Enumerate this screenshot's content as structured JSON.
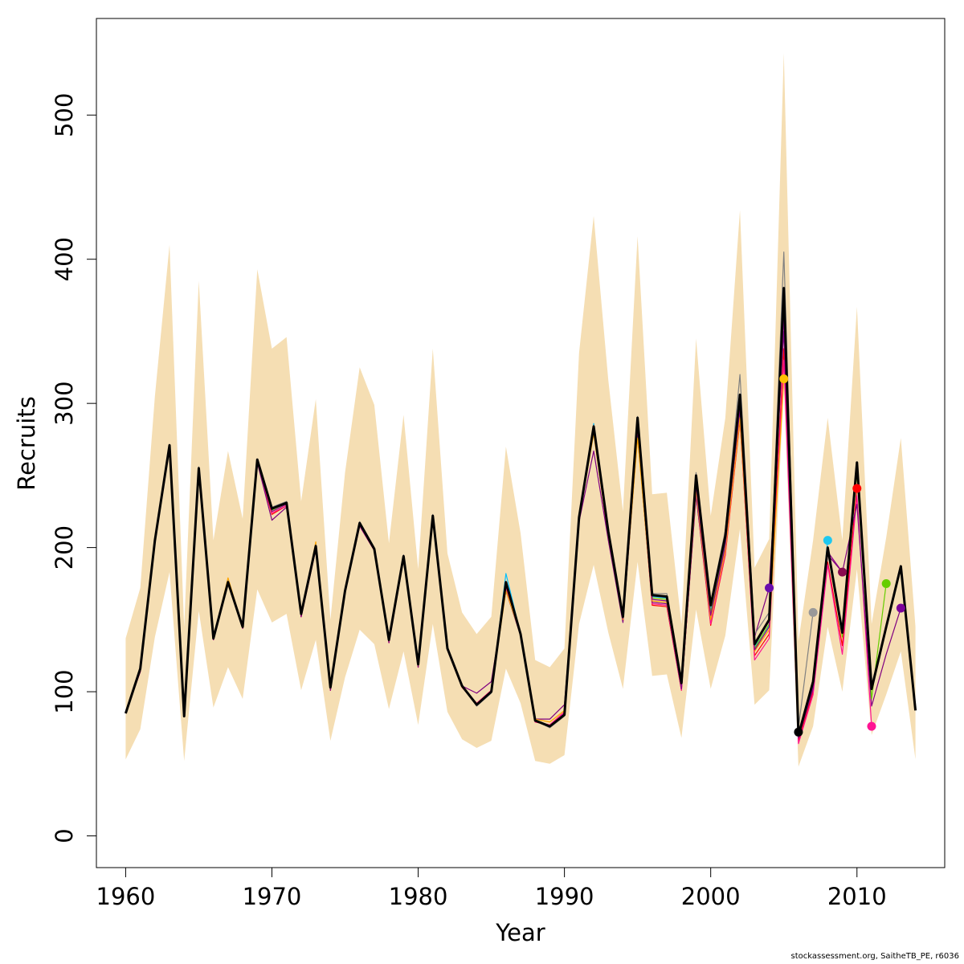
{
  "chart_data": {
    "type": "line",
    "title": "",
    "xlabel": "Year",
    "ylabel": "Recruits",
    "xlim": [
      1958,
      2016
    ],
    "ylim": [
      -22,
      567
    ],
    "xticks": [
      1960,
      1970,
      1980,
      1990,
      2000,
      2010
    ],
    "yticks": [
      0,
      100,
      200,
      300,
      400,
      500
    ],
    "band_color": "#F5DEB3",
    "band": {
      "x": [
        1960,
        1961,
        1962,
        1963,
        1964,
        1965,
        1966,
        1967,
        1968,
        1969,
        1970,
        1971,
        1972,
        1973,
        1974,
        1975,
        1976,
        1977,
        1978,
        1979,
        1980,
        1981,
        1982,
        1983,
        1984,
        1985,
        1986,
        1987,
        1988,
        1989,
        1990,
        1991,
        1992,
        1993,
        1994,
        1995,
        1996,
        1997,
        1998,
        1999,
        2000,
        2001,
        2002,
        2003,
        2004,
        2005,
        2006,
        2007,
        2008,
        2009,
        2010,
        2011,
        2012,
        2013,
        2014
      ],
      "upper": [
        137,
        172,
        305,
        410,
        145,
        385,
        205,
        267,
        220,
        393,
        338,
        346,
        232,
        303,
        150,
        252,
        325,
        299,
        203,
        292,
        185,
        338,
        196,
        155,
        140,
        152,
        270,
        210,
        122,
        117,
        130,
        335,
        430,
        316,
        225,
        416,
        237,
        238,
        147,
        345,
        222,
        290,
        434,
        186,
        206,
        543,
        135,
        205,
        290,
        205,
        367,
        147,
        207,
        276,
        145
      ],
      "lower": [
        53,
        74,
        138,
        183,
        52,
        156,
        89,
        117,
        95,
        171,
        148,
        154,
        101,
        136,
        66,
        110,
        143,
        133,
        88,
        128,
        77,
        147,
        86,
        67,
        61,
        66,
        116,
        92,
        52,
        50,
        56,
        147,
        188,
        141,
        102,
        190,
        111,
        112,
        68,
        157,
        102,
        139,
        213,
        91,
        101,
        311,
        48,
        76,
        145,
        100,
        185,
        70,
        98,
        128,
        53
      ]
    },
    "series": [
      {
        "color": "#000000",
        "width": 3.0,
        "x": [
          1960,
          1961,
          1962,
          1963,
          1964,
          1965,
          1966,
          1967,
          1968,
          1969,
          1970,
          1971,
          1972,
          1973,
          1974,
          1975,
          1976,
          1977,
          1978,
          1979,
          1980,
          1981,
          1982,
          1983,
          1984,
          1985,
          1986,
          1987,
          1988,
          1989,
          1990,
          1991,
          1992,
          1993,
          1994,
          1995,
          1996,
          1997,
          1998,
          1999,
          2000,
          2001,
          2002,
          2003,
          2004,
          2005,
          2006,
          2007,
          2008,
          2009,
          2010,
          2011,
          2012,
          2013,
          2014
        ],
        "values": [
          85,
          116,
          205,
          271,
          83,
          255,
          137,
          176,
          145,
          261,
          227,
          231,
          154,
          201,
          103,
          170,
          217,
          199,
          136,
          194,
          119,
          222,
          130,
          104,
          91,
          100,
          176,
          140,
          80,
          76,
          84,
          221,
          284,
          211,
          152,
          290,
          167,
          166,
          106,
          250,
          160,
          208,
          306,
          133,
          150,
          380,
          70,
          107,
          200,
          141,
          259,
          102,
          145,
          187,
          87
        ]
      },
      {
        "color": "#FF0000",
        "width": 1.2,
        "x": [
          1960,
          1961,
          1962,
          1963,
          1964,
          1965,
          1966,
          1967,
          1968,
          1969,
          1970,
          1971,
          1972,
          1973,
          1974,
          1975,
          1976,
          1977,
          1978,
          1979,
          1980,
          1981,
          1982,
          1983,
          1984,
          1985,
          1986,
          1987,
          1988,
          1989,
          1990,
          1991,
          1992,
          1993,
          1994,
          1995,
          1996,
          1997,
          1998,
          1999,
          2000,
          2001,
          2002,
          2003,
          2004,
          2005,
          2006,
          2007,
          2008,
          2009,
          2010
        ],
        "values": [
          85,
          114,
          203,
          269,
          83,
          253,
          136,
          175,
          144,
          259,
          223,
          229,
          152,
          199,
          101,
          169,
          215,
          198,
          134,
          192,
          117,
          221,
          129,
          103,
          92,
          101,
          172,
          139,
          79,
          77,
          86,
          220,
          280,
          207,
          149,
          280,
          160,
          159,
          101,
          237,
          146,
          195,
          288,
          125,
          140,
          338,
          66,
          100,
          190,
          132,
          241
        ]
      },
      {
        "color": "#FF1493",
        "width": 1.2,
        "x": [
          1960,
          1961,
          1962,
          1963,
          1964,
          1965,
          1966,
          1967,
          1968,
          1969,
          1970,
          1971,
          1972,
          1973,
          1974,
          1975,
          1976,
          1977,
          1978,
          1979,
          1980,
          1981,
          1982,
          1983,
          1984,
          1985,
          1986,
          1987,
          1988,
          1989,
          1990,
          1991,
          1992,
          1993,
          1994,
          1995,
          1996,
          1997,
          1998,
          1999,
          2000,
          2001,
          2002,
          2003,
          2004,
          2005,
          2006,
          2007,
          2008,
          2009,
          2010,
          2011
        ],
        "values": [
          85,
          114,
          203,
          269,
          83,
          253,
          136,
          175,
          144,
          259,
          224,
          229,
          152,
          199,
          101,
          169,
          215,
          198,
          134,
          192,
          117,
          221,
          129,
          103,
          92,
          101,
          172,
          139,
          79,
          77,
          86,
          220,
          281,
          208,
          149,
          282,
          161,
          160,
          101,
          238,
          147,
          196,
          290,
          122,
          137,
          330,
          64,
          98,
          188,
          126,
          236,
          76
        ]
      },
      {
        "color": "#00BFFF",
        "width": 1.2,
        "x": [
          1960,
          1961,
          1962,
          1963,
          1964,
          1965,
          1966,
          1967,
          1968,
          1969,
          1970,
          1971,
          1972,
          1973,
          1974,
          1975,
          1976,
          1977,
          1978,
          1979,
          1980,
          1981,
          1982,
          1983,
          1984,
          1985,
          1986,
          1987,
          1988,
          1989,
          1990,
          1991,
          1992,
          1993,
          1994,
          1995,
          1996,
          1997,
          1998,
          1999,
          2000,
          2001,
          2002,
          2003,
          2004,
          2005,
          2006,
          2007,
          2008
        ],
        "values": [
          85,
          115,
          204,
          270,
          83,
          254,
          137,
          176,
          145,
          260,
          226,
          231,
          153,
          200,
          102,
          170,
          216,
          199,
          135,
          193,
          118,
          222,
          130,
          104,
          91,
          100,
          182,
          140,
          80,
          76,
          84,
          222,
          286,
          211,
          151,
          290,
          166,
          165,
          105,
          246,
          157,
          205,
          303,
          131,
          146,
          372,
          72,
          105,
          205
        ]
      },
      {
        "color": "#800080",
        "width": 1.2,
        "x": [
          1960,
          1961,
          1962,
          1963,
          1964,
          1965,
          1966,
          1967,
          1968,
          1969,
          1970,
          1971,
          1972,
          1973,
          1974,
          1975,
          1976,
          1977,
          1978,
          1979,
          1980,
          1981,
          1982,
          1983,
          1984,
          1985,
          1986,
          1987,
          1988,
          1989,
          1990,
          1991,
          1992,
          1993,
          1994,
          1995,
          1996,
          1997,
          1998,
          1999,
          2000,
          2001,
          2002,
          2003,
          2004,
          2005,
          2006,
          2007,
          2008,
          2009,
          2010,
          2011,
          2012,
          2013
        ],
        "values": [
          85,
          114,
          203,
          269,
          83,
          253,
          136,
          175,
          144,
          259,
          219,
          228,
          152,
          199,
          101,
          169,
          215,
          198,
          134,
          192,
          117,
          221,
          129,
          104,
          99,
          107,
          170,
          139,
          81,
          81,
          91,
          218,
          267,
          205,
          148,
          278,
          162,
          161,
          102,
          236,
          150,
          200,
          295,
          138,
          172,
          350,
          68,
          102,
          195,
          183,
          230,
          90,
          126,
          158
        ]
      },
      {
        "color": "#FFA500",
        "width": 1.2,
        "x": [
          1960,
          1961,
          1962,
          1963,
          1964,
          1965,
          1966,
          1967,
          1968,
          1969,
          1970,
          1971,
          1972,
          1973,
          1974,
          1975,
          1976,
          1977,
          1978,
          1979,
          1980,
          1981,
          1982,
          1983,
          1984,
          1985,
          1986,
          1987,
          1988,
          1989,
          1990,
          1991,
          1992,
          1993,
          1994,
          1995,
          1996,
          1997,
          1998,
          1999,
          2000,
          2001,
          2002,
          2003,
          2004,
          2005
        ],
        "values": [
          85,
          115,
          204,
          270,
          83,
          254,
          137,
          179,
          145,
          260,
          225,
          230,
          153,
          204,
          102,
          170,
          216,
          199,
          135,
          193,
          118,
          222,
          130,
          104,
          91,
          100,
          170,
          140,
          81,
          79,
          87,
          220,
          279,
          208,
          150,
          276,
          163,
          162,
          104,
          240,
          150,
          198,
          290,
          128,
          143,
          317
        ]
      },
      {
        "color": "#808080",
        "width": 1.2,
        "x": [
          1960,
          1961,
          1962,
          1963,
          1964,
          1965,
          1966,
          1967,
          1968,
          1969,
          1970,
          1971,
          1972,
          1973,
          1974,
          1975,
          1976,
          1977,
          1978,
          1979,
          1980,
          1981,
          1982,
          1983,
          1984,
          1985,
          1986,
          1987,
          1988,
          1989,
          1990,
          1991,
          1992,
          1993,
          1994,
          1995,
          1996,
          1997,
          1998,
          1999,
          2000,
          2001,
          2002,
          2003,
          2004,
          2005,
          2006,
          2007
        ],
        "values": [
          85,
          116,
          205,
          271,
          83,
          256,
          138,
          177,
          146,
          261,
          228,
          232,
          155,
          202,
          104,
          171,
          218,
          200,
          137,
          195,
          119,
          223,
          131,
          105,
          90,
          99,
          175,
          141,
          80,
          75,
          83,
          222,
          285,
          212,
          153,
          291,
          168,
          168,
          108,
          252,
          162,
          212,
          320,
          140,
          155,
          405,
          75,
          155
        ]
      },
      {
        "color": "#66CD00",
        "width": 1.2,
        "x": [
          1960,
          1961,
          1962,
          1963,
          1964,
          1965,
          1966,
          1967,
          1968,
          1969,
          1970,
          1971,
          1972,
          1973,
          1974,
          1975,
          1976,
          1977,
          1978,
          1979,
          1980,
          1981,
          1982,
          1983,
          1984,
          1985,
          1986,
          1987,
          1988,
          1989,
          1990,
          1991,
          1992,
          1993,
          1994,
          1995,
          1996,
          1997,
          1998,
          1999,
          2000,
          2001,
          2002,
          2003,
          2004,
          2005,
          2006,
          2007,
          2008,
          2009,
          2010,
          2011,
          2012
        ],
        "values": [
          85,
          115,
          204,
          270,
          83,
          254,
          137,
          176,
          145,
          260,
          226,
          231,
          153,
          200,
          102,
          170,
          216,
          199,
          135,
          193,
          118,
          222,
          130,
          104,
          91,
          100,
          174,
          140,
          80,
          76,
          84,
          221,
          283,
          210,
          151,
          287,
          165,
          164,
          104,
          244,
          155,
          203,
          300,
          130,
          147,
          365,
          69,
          104,
          198,
          138,
          252,
          95,
          175
        ]
      },
      {
        "color": "#8B008B",
        "width": 1.2,
        "x": [
          1960,
          1961,
          1962,
          1963,
          1964,
          1965,
          1966,
          1967,
          1968,
          1969,
          1970,
          1971,
          1972,
          1973,
          1974,
          1975,
          1976,
          1977,
          1978,
          1979,
          1980,
          1981,
          1982,
          1983,
          1984,
          1985,
          1986,
          1987,
          1988,
          1989,
          1990,
          1991,
          1992,
          1993,
          1994,
          1995,
          1996,
          1997,
          1998,
          1999,
          2000,
          2001,
          2002,
          2003,
          2004,
          2005,
          2006,
          2007,
          2008,
          2009
        ],
        "values": [
          85,
          115,
          204,
          270,
          83,
          254,
          137,
          176,
          145,
          260,
          225,
          230,
          153,
          200,
          102,
          170,
          216,
          199,
          135,
          193,
          118,
          222,
          130,
          104,
          91,
          100,
          175,
          140,
          80,
          76,
          85,
          221,
          283,
          209,
          151,
          286,
          164,
          163,
          104,
          243,
          153,
          202,
          298,
          129,
          145,
          360,
          68,
          103,
          197,
          183
        ]
      }
    ],
    "endpoints": [
      {
        "color": "#6A0DAD",
        "x": 2004,
        "y": 172
      },
      {
        "color": "#FFC000",
        "x": 2005,
        "y": 317
      },
      {
        "color": "#000000",
        "x": 2006,
        "y": 72
      },
      {
        "color": "#999999",
        "x": 2007,
        "y": 155
      },
      {
        "color": "#1EC8F0",
        "x": 2008,
        "y": 205
      },
      {
        "color": "#8B0A50",
        "x": 2009,
        "y": 183
      },
      {
        "color": "#FF0000",
        "x": 2010,
        "y": 241
      },
      {
        "color": "#FF1493",
        "x": 2011,
        "y": 76
      },
      {
        "color": "#66CD00",
        "x": 2012,
        "y": 175
      },
      {
        "color": "#7B0099",
        "x": 2013,
        "y": 158
      }
    ]
  },
  "footer": "stockassessment.org, SaitheTB_PE, r6036"
}
